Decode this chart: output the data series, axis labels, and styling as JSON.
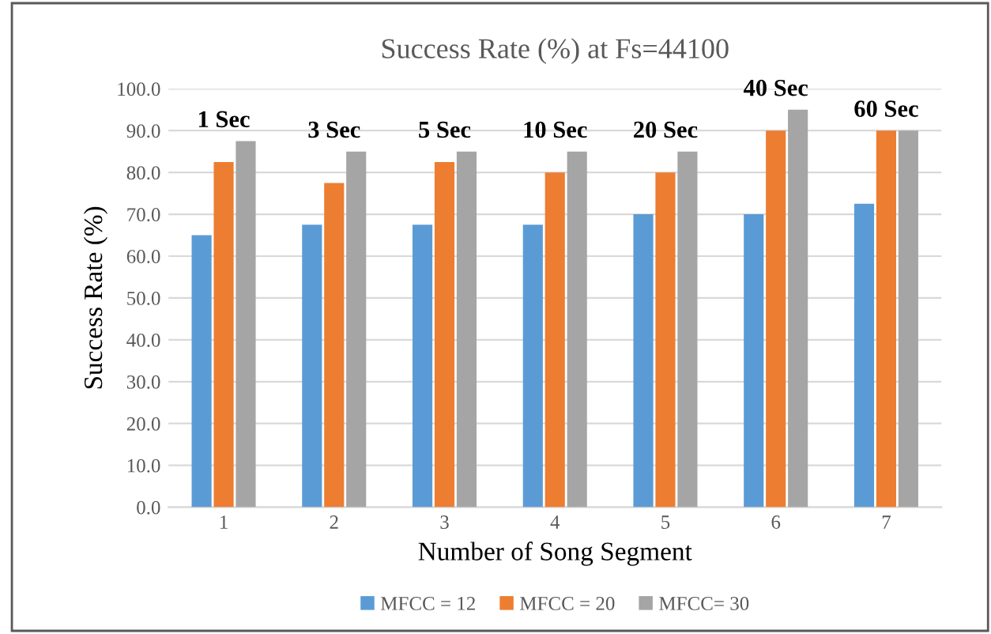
{
  "chart_data": {
    "type": "bar",
    "title": "Success Rate (%) at Fs=44100",
    "xlabel": "Number of Song Segment",
    "ylabel": "Success Rate (%)",
    "categories": [
      "1",
      "2",
      "3",
      "4",
      "5",
      "6",
      "7"
    ],
    "series": [
      {
        "name": "MFCC = 12",
        "color": "#5b9bd5",
        "values": [
          65,
          67.5,
          67.5,
          67.5,
          70,
          70,
          72.5
        ]
      },
      {
        "name": "MFCC = 20",
        "color": "#ed7d31",
        "values": [
          82.5,
          77.5,
          82.5,
          80,
          80,
          90,
          90
        ]
      },
      {
        "name": "MFCC= 30",
        "color": "#a5a5a5",
        "values": [
          87.5,
          85,
          85,
          85,
          85,
          95,
          90
        ]
      }
    ],
    "ylim": [
      0,
      100
    ],
    "yticks": [
      {
        "value": 0,
        "label": "0.0"
      },
      {
        "value": 10,
        "label": "10.0"
      },
      {
        "value": 20,
        "label": "20.0"
      },
      {
        "value": 30,
        "label": "30.0"
      },
      {
        "value": 40,
        "label": "40.0"
      },
      {
        "value": 50,
        "label": "50.0"
      },
      {
        "value": 60,
        "label": "60.0"
      },
      {
        "value": 70,
        "label": "70.0"
      },
      {
        "value": 80,
        "label": "80.0"
      },
      {
        "value": 90,
        "label": "90.0"
      },
      {
        "value": 100,
        "label": "100.0"
      }
    ],
    "annotations": [
      "1 Sec",
      "3 Sec",
      "5 Sec",
      "10 Sec",
      "20 Sec",
      "40 Sec",
      "60 Sec"
    ],
    "grid": "y",
    "legend": "bottom"
  }
}
